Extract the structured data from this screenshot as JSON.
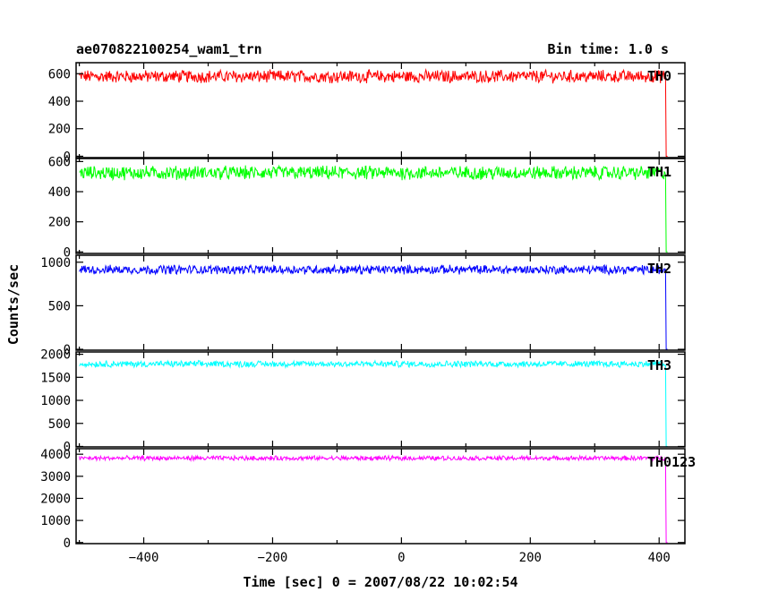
{
  "header": {
    "title": "ae070822100254_wam1_trn",
    "bin_time": "Bin time: 1.0 s"
  },
  "chart_data": {
    "type": "line",
    "title": "ae070822100254_wam1_trn",
    "xlabel": "Time [sec] 0 = 2007/08/22 10:02:54",
    "ylabel": "Counts/sec",
    "xlim": [
      -505,
      440
    ],
    "x_ticks": [
      -400,
      -200,
      0,
      200,
      400
    ],
    "x_tick_labels": [
      "−400",
      "−200",
      "0",
      "200",
      "400"
    ],
    "x_start": -500,
    "x_drop": 410,
    "bin_seconds": 1.0,
    "panels": [
      {
        "name": "TH0",
        "color": "#ff0000",
        "ylim": [
          -10,
          680
        ],
        "yticks": [
          0,
          200,
          400,
          600
        ],
        "ytick_labels": [
          "0",
          "200",
          "400",
          "600"
        ],
        "level": 580,
        "noise": 40
      },
      {
        "name": "TH1",
        "color": "#00ff00",
        "ylim": [
          -10,
          620
        ],
        "yticks": [
          0,
          200,
          400,
          600
        ],
        "ytick_labels": [
          "0",
          "200",
          "400",
          "600"
        ],
        "level": 525,
        "noise": 40
      },
      {
        "name": "TH2",
        "color": "#0000ff",
        "ylim": [
          -10,
          1080
        ],
        "yticks": [
          0,
          500,
          1000
        ],
        "ytick_labels": [
          "0",
          "500",
          "1000"
        ],
        "level": 915,
        "noise": 45
      },
      {
        "name": "TH3",
        "color": "#00ffff",
        "ylim": [
          -10,
          2050
        ],
        "yticks": [
          0,
          500,
          1000,
          1500,
          2000
        ],
        "ytick_labels": [
          "0",
          "500",
          "1000",
          "1500",
          "2000"
        ],
        "level": 1790,
        "noise": 60
      },
      {
        "name": "TH0123",
        "color": "#ff00ff",
        "ylim": [
          -50,
          4250
        ],
        "yticks": [
          0,
          1000,
          2000,
          3000,
          4000
        ],
        "ytick_labels": [
          "0",
          "1000",
          "2000",
          "3000",
          "4000"
        ],
        "level": 3820,
        "noise": 90
      }
    ]
  }
}
